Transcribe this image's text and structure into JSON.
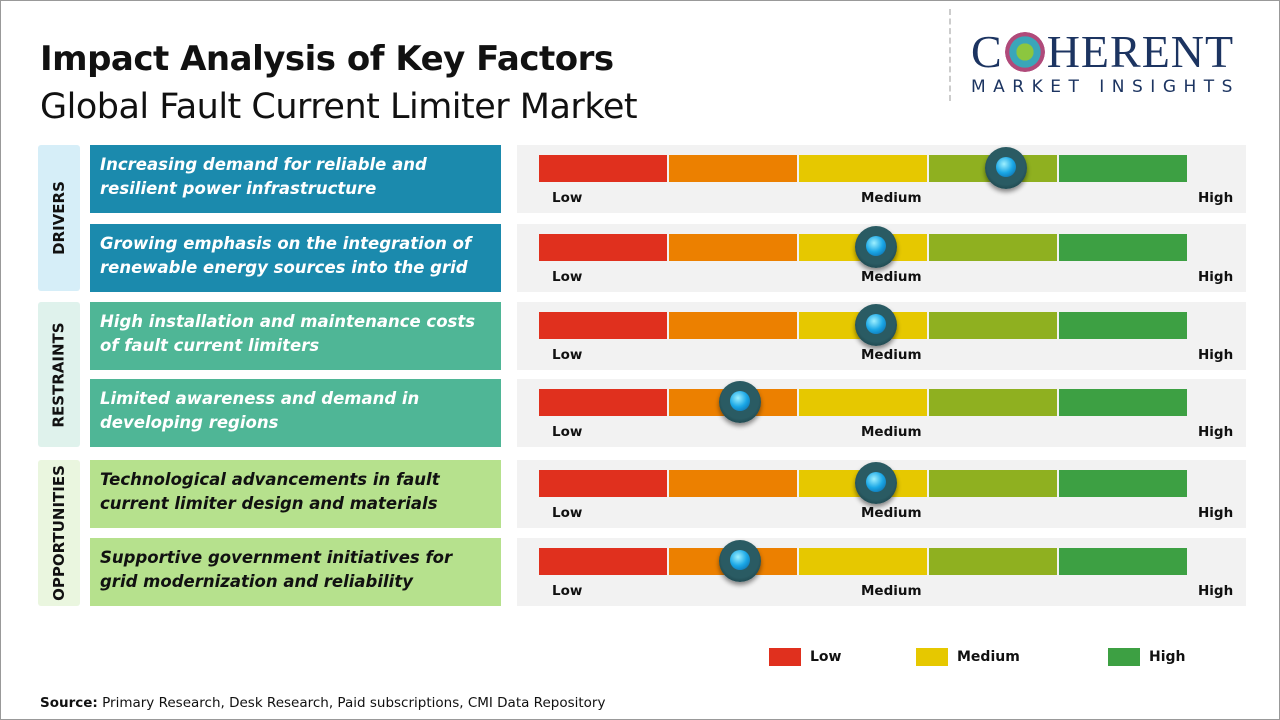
{
  "header": {
    "title": "Impact Analysis of Key Factors",
    "subtitle": "Global Fault Current Limiter Market"
  },
  "logo": {
    "main_left": "C",
    "main_right": "HERENT",
    "sub": "MARKET INSIGHTS"
  },
  "colors": {
    "low": "#e0301e",
    "low_mid": "#ec8000",
    "medium": "#e6c800",
    "mid_high": "#8fb020",
    "high": "#3da043"
  },
  "chart_data": {
    "type": "gauge",
    "scale_labels": [
      "Low",
      "Medium",
      "High"
    ],
    "range": [
      0,
      1
    ],
    "categories": [
      {
        "name": "DRIVERS",
        "bg": "#d6eef8",
        "box": "#1b8aad",
        "text_color": "#ffffff",
        "factors": [
          {
            "text": "Increasing demand for reliable and resilient power infrastructure",
            "value": 0.72
          },
          {
            "text": "Growing emphasis on the integration of renewable energy sources into the grid",
            "value": 0.52
          }
        ]
      },
      {
        "name": "RESTRAINTS",
        "bg": "#dff2ec",
        "box": "#4fb696",
        "text_color": "#ffffff",
        "factors": [
          {
            "text": "High installation and maintenance costs of fault current limiters",
            "value": 0.52
          },
          {
            "text": "Limited awareness and demand in developing regions",
            "value": 0.31
          }
        ]
      },
      {
        "name": "OPPORTUNITIES",
        "bg": "#eaf6df",
        "box": "#b6e18d",
        "text_color": "#111111",
        "factors": [
          {
            "text": "Technological advancements in fault current limiter design and materials",
            "value": 0.52
          },
          {
            "text": "Supportive government initiatives for grid modernization and reliability",
            "value": 0.31
          }
        ]
      }
    ]
  },
  "legend": [
    {
      "label": "Low",
      "color": "#e0301e"
    },
    {
      "label": "Medium",
      "color": "#e6c800"
    },
    {
      "label": "High",
      "color": "#3da043"
    }
  ],
  "footer": {
    "source_label": "Source:",
    "source_text": " Primary Research, Desk Research, Paid subscriptions, CMI Data Repository"
  }
}
